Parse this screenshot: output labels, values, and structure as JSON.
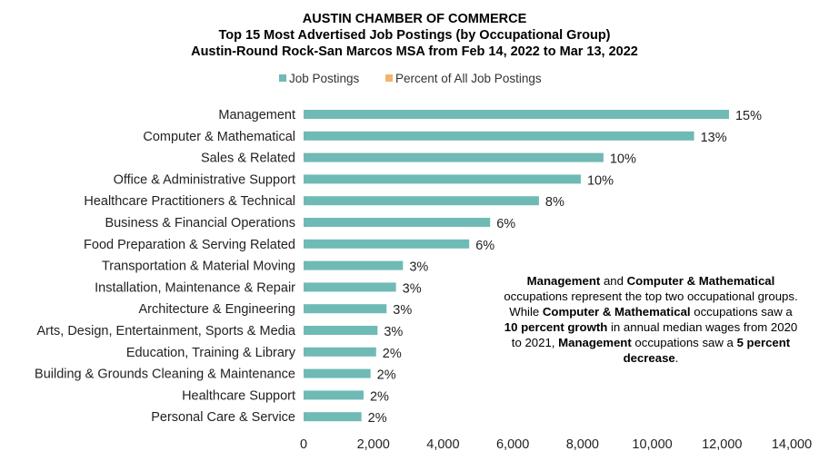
{
  "chart_data": {
    "type": "bar",
    "orientation": "horizontal",
    "title_lines": [
      "AUSTIN CHAMBER OF COMMERCE",
      "Top 15 Most Advertised Job Postings (by Occupational Group)",
      "Austin-Round Rock-San Marcos MSA from Feb 14, 2022 to Mar 13, 2022"
    ],
    "legend": [
      {
        "name": "Job Postings",
        "color": "#6fbab5"
      },
      {
        "name": "Percent of All Job Postings",
        "color": "#f3b36e"
      }
    ],
    "legend_position": "top",
    "categories": [
      "Management",
      "Computer & Mathematical",
      "Sales & Related",
      "Office & Administrative Support",
      "Healthcare Practitioners & Technical",
      "Business & Financial Operations",
      "Food Preparation & Serving Related",
      "Transportation & Material Moving",
      "Installation, Maintenance & Repair",
      "Architecture & Engineering",
      "Arts, Design, Entertainment, Sports & Media",
      "Education, Training & Library",
      "Building & Grounds Cleaning & Maintenance",
      "Healthcare Support",
      "Personal Care & Service"
    ],
    "series": [
      {
        "name": "Job Postings",
        "color": "#6fbab5",
        "values": [
          12200,
          11200,
          8600,
          7950,
          6750,
          5350,
          4750,
          2850,
          2650,
          2380,
          2120,
          2080,
          1920,
          1720,
          1660
        ]
      },
      {
        "name": "Percent of All Job Postings",
        "color": "#f3b36e",
        "labels": [
          "15%",
          "13%",
          "10%",
          "10%",
          "8%",
          "6%",
          "6%",
          "3%",
          "3%",
          "3%",
          "3%",
          "2%",
          "2%",
          "2%",
          "2%"
        ]
      }
    ],
    "xlim": [
      0,
      14000
    ],
    "xticks": [
      0,
      2000,
      4000,
      6000,
      8000,
      10000,
      12000,
      14000
    ],
    "xtick_labels": [
      "0",
      "2,000",
      "4,000",
      "6,000",
      "8,000",
      "10,000",
      "12,000",
      "14,000"
    ],
    "grid": false
  },
  "annotation": {
    "p1": "Management",
    "p2": " and ",
    "p3": "Computer & Mathematical",
    "p4": " occupations represent the top two occupational groups. While ",
    "p5": "Computer & Mathematical",
    "p6": " occupations saw a ",
    "p7": "10 percent growth",
    "p8": " in annual median wages from 2020 to 2021, ",
    "p9": "Management",
    "p10": " occupations saw a ",
    "p11": "5 percent decrease",
    "p12": "."
  }
}
